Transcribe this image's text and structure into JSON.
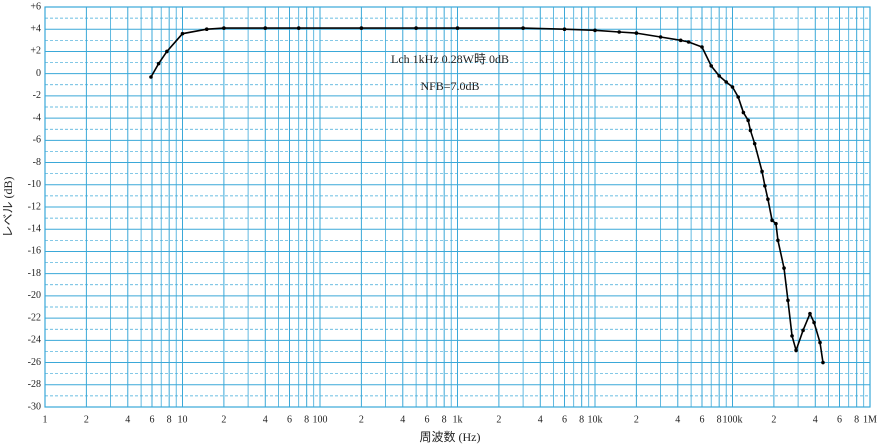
{
  "chart_data": {
    "type": "line",
    "xlabel": "周波数 (Hz)",
    "ylabel": "レベル (dB)",
    "annotations": [
      "Lch  1kHz  0.28W時 0dB",
      "NFB=7.0dB"
    ],
    "xscale": "log",
    "grid": true,
    "grid_color": "#3aa8d8",
    "xlim": [
      1,
      1000000
    ],
    "ylim": [
      -30,
      6
    ],
    "xticks": [
      1,
      2,
      4,
      6,
      8,
      10,
      {
        "value": 20,
        "label": "2"
      },
      {
        "value": 40,
        "label": "4"
      },
      {
        "value": 60,
        "label": "6"
      },
      {
        "value": 80,
        "label": "8"
      },
      100,
      {
        "value": 200,
        "label": "2"
      },
      {
        "value": 400,
        "label": "4"
      },
      {
        "value": 600,
        "label": "6"
      },
      {
        "value": 800,
        "label": "8"
      },
      {
        "value": 1000,
        "label": "1k"
      },
      {
        "value": 2000,
        "label": "2"
      },
      {
        "value": 4000,
        "label": "4"
      },
      {
        "value": 6000,
        "label": "6"
      },
      {
        "value": 8000,
        "label": "8"
      },
      {
        "value": 10000,
        "label": "10k"
      },
      {
        "value": 20000,
        "label": "2"
      },
      {
        "value": 40000,
        "label": "4"
      },
      {
        "value": 60000,
        "label": "6"
      },
      {
        "value": 80000,
        "label": "8"
      },
      {
        "value": 100000,
        "label": "100k"
      },
      {
        "value": 200000,
        "label": "2"
      },
      {
        "value": 400000,
        "label": "4"
      },
      {
        "value": 600000,
        "label": "6"
      },
      {
        "value": 800000,
        "label": "8"
      },
      {
        "value": 1000000,
        "label": "1M"
      }
    ],
    "xminor": [
      3,
      5,
      7,
      9,
      30,
      50,
      70,
      90,
      300,
      500,
      700,
      900,
      3000,
      5000,
      7000,
      9000,
      30000,
      50000,
      70000,
      90000,
      300000,
      500000,
      700000,
      900000
    ],
    "yticks": [
      {
        "value": 6,
        "label": "+6"
      },
      {
        "value": 4,
        "label": "+4"
      },
      {
        "value": 2,
        "label": "+2"
      },
      0,
      -2,
      -4,
      -6,
      -8,
      -10,
      -12,
      -14,
      -16,
      -18,
      -20,
      -22,
      -24,
      -26,
      -28,
      -30
    ],
    "yminor": [
      5,
      3,
      1,
      -1,
      -3,
      -5,
      -7,
      -9,
      -11,
      -13,
      -15,
      -17,
      -19,
      -21,
      -23,
      -25,
      -27,
      -29
    ],
    "series": [
      {
        "color": "#000000",
        "x": [
          5.9,
          6.7,
          7.7,
          10,
          15,
          20,
          40,
          70,
          200,
          500,
          1000,
          3000,
          6000,
          10000,
          15000,
          20000,
          30000,
          42000,
          48000,
          60000,
          70000,
          80000,
          90000,
          100000,
          110000,
          120000,
          130000,
          135000,
          145000,
          164000,
          172000,
          181000,
          194000,
          207000,
          214000,
          237000,
          253000,
          271000,
          290000,
          326000,
          366000,
          392000,
          433000,
          455000
        ],
        "values": [
          -0.3,
          0.9,
          2.0,
          3.6,
          4.0,
          4.1,
          4.1,
          4.1,
          4.1,
          4.1,
          4.1,
          4.1,
          4.0,
          3.9,
          3.75,
          3.65,
          3.3,
          3.0,
          2.85,
          2.4,
          0.7,
          -0.2,
          -0.75,
          -1.2,
          -2.1,
          -3.5,
          -4.2,
          -5.1,
          -6.3,
          -8.8,
          -10.1,
          -11.3,
          -13.2,
          -13.5,
          -15,
          -17.5,
          -20.4,
          -23.6,
          -24.9,
          -23.1,
          -21.6,
          -22.4,
          -24.2,
          -26
        ]
      }
    ]
  }
}
